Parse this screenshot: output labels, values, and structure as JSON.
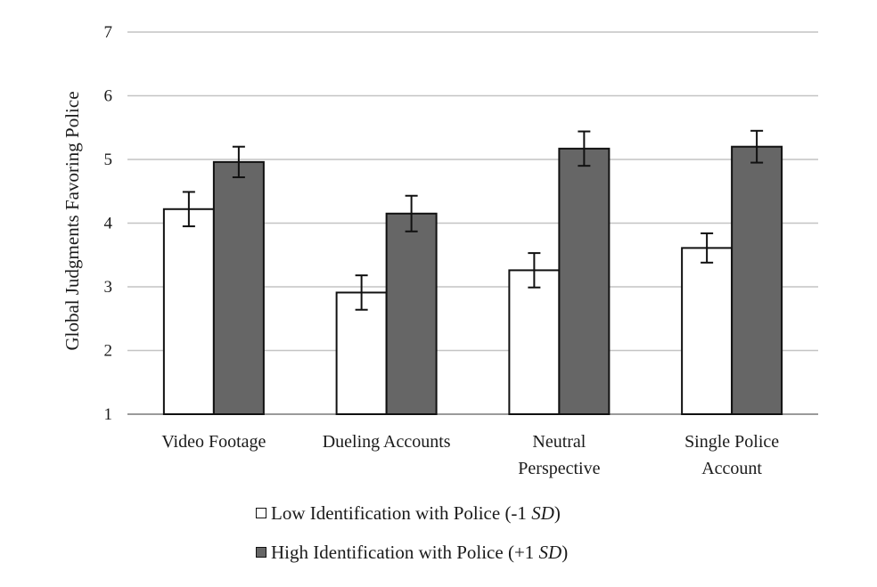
{
  "chart_data": {
    "type": "bar",
    "title": "",
    "xlabel": "",
    "ylabel": "Global Judgments Favoring Police",
    "ylim": [
      1,
      7
    ],
    "yticks": [
      1,
      2,
      3,
      4,
      5,
      6,
      7
    ],
    "grid": true,
    "categories": [
      [
        "Video Footage"
      ],
      [
        "Dueling Accounts"
      ],
      [
        "Neutral",
        "Perspective"
      ],
      [
        "Single Police",
        "Account"
      ]
    ],
    "series": [
      {
        "name": "Low Identification with Police (-1 SD)",
        "legend_prefix": "Low Identification with Police (-1 ",
        "legend_sd": "SD",
        "legend_suffix": ")",
        "color": "#ffffff",
        "values": [
          4.22,
          2.91,
          3.26,
          3.61
        ],
        "error": [
          0.27,
          0.27,
          0.27,
          0.23
        ]
      },
      {
        "name": "High Identification with Police (+1 SD)",
        "legend_prefix": "High Identification with Police (+1 ",
        "legend_sd": "SD",
        "legend_suffix": ")",
        "color": "#666666",
        "values": [
          4.96,
          4.15,
          5.17,
          5.2
        ],
        "error": [
          0.24,
          0.28,
          0.27,
          0.25
        ]
      }
    ],
    "legend_position": "bottom"
  }
}
